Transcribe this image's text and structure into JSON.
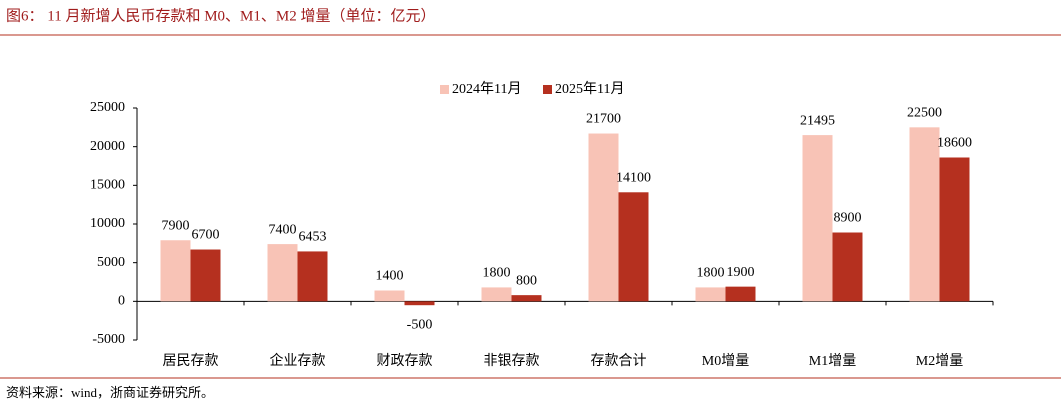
{
  "chart_data": {
    "type": "bar",
    "title": "图6： 11 月新增人民币存款和 M0、M1、M2 增量（单位：亿元）",
    "categories": [
      "居民存款",
      "企业存款",
      "财政存款",
      "非银存款",
      "存款合计",
      "M0增量",
      "M1增量",
      "M2增量"
    ],
    "series": [
      {
        "name": "2024年11月",
        "color": "#f8c3b6",
        "values": [
          7900,
          7400,
          1400,
          1800,
          21700,
          1800,
          21495,
          22500
        ]
      },
      {
        "name": "2025年11月",
        "color": "#b5301f",
        "values": [
          6700,
          6453,
          -500,
          800,
          14100,
          1900,
          8900,
          18600
        ]
      }
    ],
    "ylim": [
      -5000,
      25000
    ],
    "yticks": [
      -5000,
      0,
      5000,
      10000,
      15000,
      20000,
      25000
    ],
    "legend": "top",
    "grid": false
  },
  "footer": {
    "source": "资料来源：wind，浙商证券研究所。"
  }
}
